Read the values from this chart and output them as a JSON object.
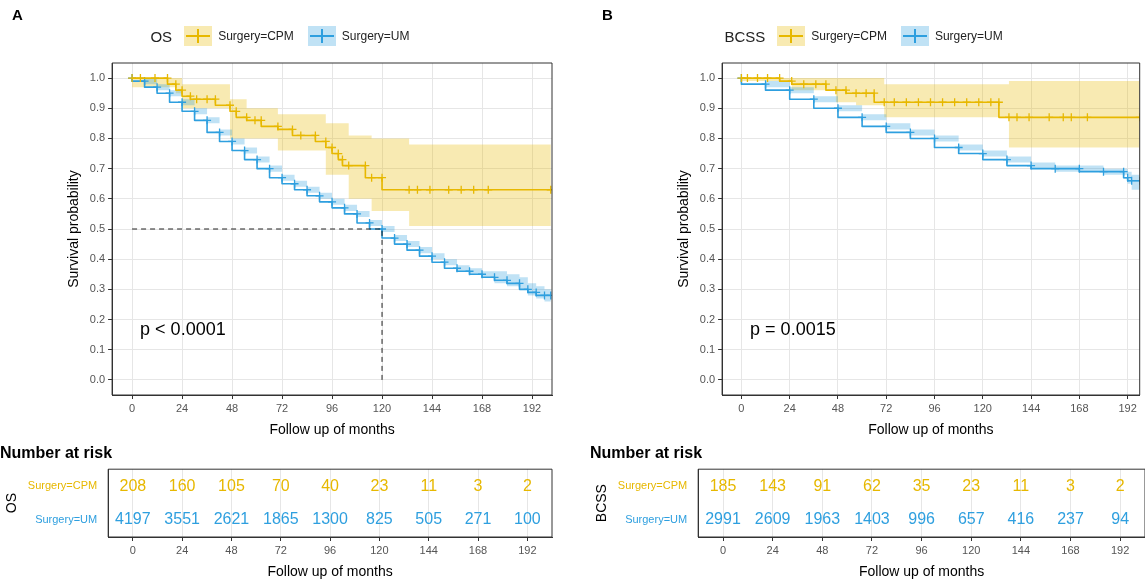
{
  "chart_data": [
    {
      "type": "step",
      "title": "A",
      "legend_title": "OS",
      "legend": "top",
      "xlabel": "Follow up of months",
      "ylabel": "Survival probability",
      "xlim": [
        -9.6,
        201.6
      ],
      "ylim": [
        -0.05,
        1.05
      ],
      "xticks": [
        0,
        24,
        48,
        72,
        96,
        120,
        144,
        168,
        192
      ],
      "yticks": [
        {
          "value": 0,
          "label": "0.0"
        },
        {
          "value": 0.1,
          "label": "0.1"
        },
        {
          "value": 0.2,
          "label": "0.2"
        },
        {
          "value": 0.3,
          "label": "0.3"
        },
        {
          "value": 0.4,
          "label": "0.4"
        },
        {
          "value": 0.5,
          "label": "0.5"
        },
        {
          "value": 0.6,
          "label": "0.6"
        },
        {
          "value": 0.7,
          "label": "0.7"
        },
        {
          "value": 0.8,
          "label": "0.8"
        },
        {
          "value": 0.9,
          "label": "0.9"
        },
        {
          "value": 1,
          "label": "1.0"
        }
      ],
      "grid": true,
      "marker": "cross",
      "annotations": [
        "p < 0.0001"
      ],
      "ref_lines": [
        {
          "axis": "y",
          "value": 0.5,
          "line_style": "dashed"
        },
        {
          "axis": "x",
          "value": 120,
          "line_style": "dashed"
        }
      ],
      "series": [
        {
          "name": "Surgery=CPM",
          "color": "#e7b800",
          "x": [
            0,
            4,
            11,
            17,
            21,
            24,
            28,
            31,
            36,
            40,
            47,
            50,
            55,
            59,
            62,
            70,
            77,
            81,
            88,
            93,
            96,
            99,
            101,
            104,
            112,
            115,
            120,
            133,
            137,
            143,
            152,
            158,
            164,
            171,
            201
          ],
          "values": [
            1.0,
            1.0,
            1.0,
            1.0,
            0.98,
            0.96,
            0.94,
            0.93,
            0.93,
            0.93,
            0.91,
            0.89,
            0.87,
            0.86,
            0.86,
            0.84,
            0.83,
            0.81,
            0.81,
            0.79,
            0.77,
            0.75,
            0.73,
            0.71,
            0.71,
            0.67,
            0.67,
            0.63,
            0.63,
            0.63,
            0.63,
            0.63,
            0.63,
            0.63,
            0.63
          ],
          "lower": [
            0.97,
            0.97,
            0.97,
            0.97,
            0.95,
            0.9,
            0.9,
            0.9,
            0.9,
            0.9,
            0.8,
            0.8,
            0.8,
            0.8,
            0.8,
            0.76,
            0.76,
            0.76,
            0.76,
            0.68,
            0.68,
            0.68,
            0.68,
            0.6,
            0.6,
            0.56,
            0.56,
            0.51,
            0.51,
            0.51,
            0.51,
            0.51,
            0.51,
            0.51,
            0.51
          ],
          "upper": [
            1.0,
            1.0,
            1.0,
            1.0,
            1.0,
            0.98,
            0.98,
            0.98,
            0.98,
            0.98,
            0.93,
            0.93,
            0.9,
            0.9,
            0.9,
            0.88,
            0.88,
            0.88,
            0.88,
            0.85,
            0.85,
            0.85,
            0.85,
            0.81,
            0.81,
            0.8,
            0.8,
            0.78,
            0.78,
            0.78,
            0.78,
            0.78,
            0.78,
            0.78,
            0.78
          ]
        },
        {
          "name": "Surgery=UM",
          "color": "#2e9fdf",
          "x": [
            0,
            6,
            12,
            18,
            24,
            30,
            36,
            42,
            48,
            54,
            60,
            66,
            72,
            78,
            84,
            90,
            96,
            102,
            108,
            114,
            120,
            126,
            132,
            138,
            144,
            150,
            156,
            162,
            168,
            174,
            180,
            186,
            190,
            194,
            198,
            201
          ],
          "values": [
            1.0,
            0.99,
            0.97,
            0.95,
            0.92,
            0.89,
            0.86,
            0.82,
            0.79,
            0.76,
            0.73,
            0.7,
            0.67,
            0.65,
            0.63,
            0.61,
            0.59,
            0.57,
            0.55,
            0.52,
            0.5,
            0.47,
            0.45,
            0.43,
            0.41,
            0.39,
            0.37,
            0.36,
            0.35,
            0.34,
            0.33,
            0.32,
            0.3,
            0.29,
            0.28,
            0.28
          ],
          "lower": [
            1.0,
            0.98,
            0.96,
            0.94,
            0.91,
            0.88,
            0.85,
            0.81,
            0.78,
            0.75,
            0.72,
            0.69,
            0.66,
            0.64,
            0.62,
            0.6,
            0.58,
            0.56,
            0.54,
            0.51,
            0.49,
            0.46,
            0.44,
            0.42,
            0.4,
            0.38,
            0.36,
            0.35,
            0.34,
            0.32,
            0.31,
            0.3,
            0.28,
            0.27,
            0.26,
            0.26
          ],
          "upper": [
            1.0,
            1.0,
            0.98,
            0.96,
            0.93,
            0.9,
            0.87,
            0.83,
            0.8,
            0.77,
            0.74,
            0.71,
            0.68,
            0.66,
            0.64,
            0.62,
            0.6,
            0.58,
            0.56,
            0.53,
            0.51,
            0.48,
            0.46,
            0.44,
            0.42,
            0.4,
            0.38,
            0.37,
            0.36,
            0.36,
            0.35,
            0.34,
            0.32,
            0.31,
            0.3,
            0.3
          ]
        }
      ]
    },
    {
      "type": "step",
      "title": "B",
      "legend_title": "BCSS",
      "legend": "top",
      "xlabel": "Follow up of months",
      "ylabel": "Survival probability",
      "xlim": [
        -9.6,
        198
      ],
      "ylim": [
        -0.05,
        1.05
      ],
      "xticks": [
        0,
        24,
        48,
        72,
        96,
        120,
        144,
        168,
        192
      ],
      "yticks": [
        {
          "value": 0,
          "label": "0.0"
        },
        {
          "value": 0.1,
          "label": "0.1"
        },
        {
          "value": 0.2,
          "label": "0.2"
        },
        {
          "value": 0.3,
          "label": "0.3"
        },
        {
          "value": 0.4,
          "label": "0.4"
        },
        {
          "value": 0.5,
          "label": "0.5"
        },
        {
          "value": 0.6,
          "label": "0.6"
        },
        {
          "value": 0.7,
          "label": "0.7"
        },
        {
          "value": 0.8,
          "label": "0.8"
        },
        {
          "value": 0.9,
          "label": "0.9"
        },
        {
          "value": 1,
          "label": "1.0"
        }
      ],
      "grid": true,
      "marker": "cross",
      "annotations": [
        "p = 0.0015"
      ],
      "series": [
        {
          "name": "Surgery=CPM",
          "color": "#e7b800",
          "x": [
            0,
            3,
            8,
            13,
            19,
            25,
            31,
            37,
            42,
            47,
            52,
            57,
            62,
            66,
            71,
            76,
            82,
            88,
            94,
            100,
            106,
            112,
            118,
            124,
            128,
            133,
            137,
            143,
            153,
            160,
            164,
            172,
            198
          ],
          "values": [
            1.0,
            1.0,
            1.0,
            1.0,
            1.0,
            0.99,
            0.98,
            0.98,
            0.98,
            0.96,
            0.96,
            0.95,
            0.95,
            0.95,
            0.92,
            0.92,
            0.92,
            0.92,
            0.92,
            0.92,
            0.92,
            0.92,
            0.92,
            0.92,
            0.92,
            0.87,
            0.87,
            0.87,
            0.87,
            0.87,
            0.87,
            0.87,
            0.87
          ],
          "lower": [
            0.99,
            0.99,
            0.99,
            0.99,
            0.99,
            0.96,
            0.96,
            0.96,
            0.96,
            0.92,
            0.92,
            0.91,
            0.91,
            0.91,
            0.87,
            0.87,
            0.87,
            0.87,
            0.87,
            0.87,
            0.87,
            0.87,
            0.87,
            0.87,
            0.87,
            0.77,
            0.77,
            0.77,
            0.77,
            0.77,
            0.77,
            0.77,
            0.77
          ],
          "upper": [
            1.0,
            1.0,
            1.0,
            1.0,
            1.0,
            1.0,
            1.0,
            1.0,
            1.0,
            1.0,
            1.0,
            1.0,
            1.0,
            1.0,
            0.98,
            0.98,
            0.98,
            0.98,
            0.98,
            0.98,
            0.98,
            0.98,
            0.98,
            0.98,
            0.98,
            0.99,
            0.99,
            0.99,
            0.99,
            0.99,
            0.99,
            0.99,
            0.99
          ]
        },
        {
          "name": "Surgery=UM",
          "color": "#2e9fdf",
          "x": [
            0,
            12,
            24,
            36,
            48,
            60,
            72,
            84,
            96,
            108,
            120,
            132,
            144,
            156,
            168,
            180,
            190,
            192,
            194,
            198
          ],
          "values": [
            1.0,
            0.98,
            0.96,
            0.93,
            0.9,
            0.87,
            0.84,
            0.82,
            0.8,
            0.77,
            0.75,
            0.73,
            0.71,
            0.7,
            0.7,
            0.69,
            0.69,
            0.67,
            0.66,
            0.66
          ],
          "lower": [
            1.0,
            0.97,
            0.95,
            0.92,
            0.89,
            0.86,
            0.83,
            0.81,
            0.79,
            0.76,
            0.74,
            0.72,
            0.7,
            0.69,
            0.69,
            0.68,
            0.68,
            0.65,
            0.63,
            0.63
          ],
          "upper": [
            1.0,
            0.99,
            0.97,
            0.94,
            0.91,
            0.88,
            0.85,
            0.83,
            0.81,
            0.78,
            0.76,
            0.74,
            0.72,
            0.71,
            0.71,
            0.7,
            0.7,
            0.69,
            0.68,
            0.68
          ]
        }
      ]
    },
    {
      "type": "heatmap",
      "title": "Number at risk",
      "xlabel": "Follow up of months",
      "ylabel": "OS",
      "categories": [
        "0",
        "24",
        "48",
        "72",
        "96",
        "120",
        "144",
        "168",
        "192"
      ],
      "y_categories": [
        "Surgery=CPM",
        "Surgery=UM"
      ],
      "colors": [
        "#e7b800",
        "#2e9fdf"
      ],
      "grid": "x",
      "data_labels": true,
      "cells": [
        [
          208,
          160,
          105,
          70,
          40,
          23,
          11,
          3,
          2
        ],
        [
          4197,
          3551,
          2621,
          1865,
          1300,
          825,
          505,
          271,
          100
        ]
      ]
    },
    {
      "type": "heatmap",
      "title": "Number at risk",
      "xlabel": "Follow up of months",
      "ylabel": "BCSS",
      "categories": [
        "0",
        "24",
        "48",
        "72",
        "96",
        "120",
        "144",
        "168",
        "192"
      ],
      "y_categories": [
        "Surgery=CPM",
        "Surgery=UM"
      ],
      "colors": [
        "#e7b800",
        "#2e9fdf"
      ],
      "grid": "x",
      "data_labels": true,
      "cells": [
        [
          185,
          143,
          91,
          62,
          35,
          23,
          11,
          3,
          2
        ],
        [
          2991,
          2609,
          1963,
          1403,
          996,
          657,
          416,
          237,
          94
        ]
      ]
    }
  ]
}
